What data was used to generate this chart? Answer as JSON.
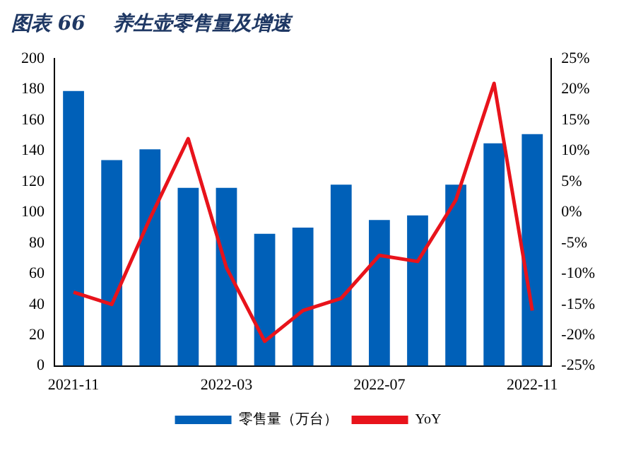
{
  "chart_data": {
    "type": "bar",
    "title": "图表 66    养生壶零售量及增速",
    "categories": [
      "2021-11",
      null,
      null,
      null,
      "2022-03",
      null,
      null,
      null,
      "2022-07",
      null,
      null,
      null,
      "2022-11"
    ],
    "series": [
      {
        "name": "零售量（万台）",
        "color": "#0060b8",
        "values": [
          179,
          134,
          141,
          116,
          116,
          86,
          90,
          118,
          95,
          98,
          118,
          145,
          151
        ]
      },
      {
        "name": "YoY",
        "type": "line",
        "axis": "y2",
        "color": "#e8131b",
        "values": [
          -13,
          -15,
          -1,
          12,
          -9,
          -21,
          -16,
          -14,
          -7,
          -8,
          2,
          21,
          -16
        ]
      }
    ],
    "ylim": [
      0,
      200
    ],
    "yticks": [
      0,
      20,
      40,
      60,
      80,
      100,
      120,
      140,
      160,
      180,
      200
    ],
    "y2lim": [
      -25,
      25
    ],
    "y2ticks": [
      {
        "value": -25,
        "label": "-25%"
      },
      {
        "value": -20,
        "label": "-20%"
      },
      {
        "value": -15,
        "label": "-15%"
      },
      {
        "value": -10,
        "label": "-10%"
      },
      {
        "value": -5,
        "label": "-5%"
      },
      {
        "value": 0,
        "label": "0%"
      },
      {
        "value": 5,
        "label": "5%"
      },
      {
        "value": 10,
        "label": "10%"
      },
      {
        "value": 15,
        "label": "15%"
      },
      {
        "value": 20,
        "label": "20%"
      },
      {
        "value": 25,
        "label": "25%"
      }
    ],
    "grid": false,
    "legend": "bottom",
    "marker": "none"
  }
}
